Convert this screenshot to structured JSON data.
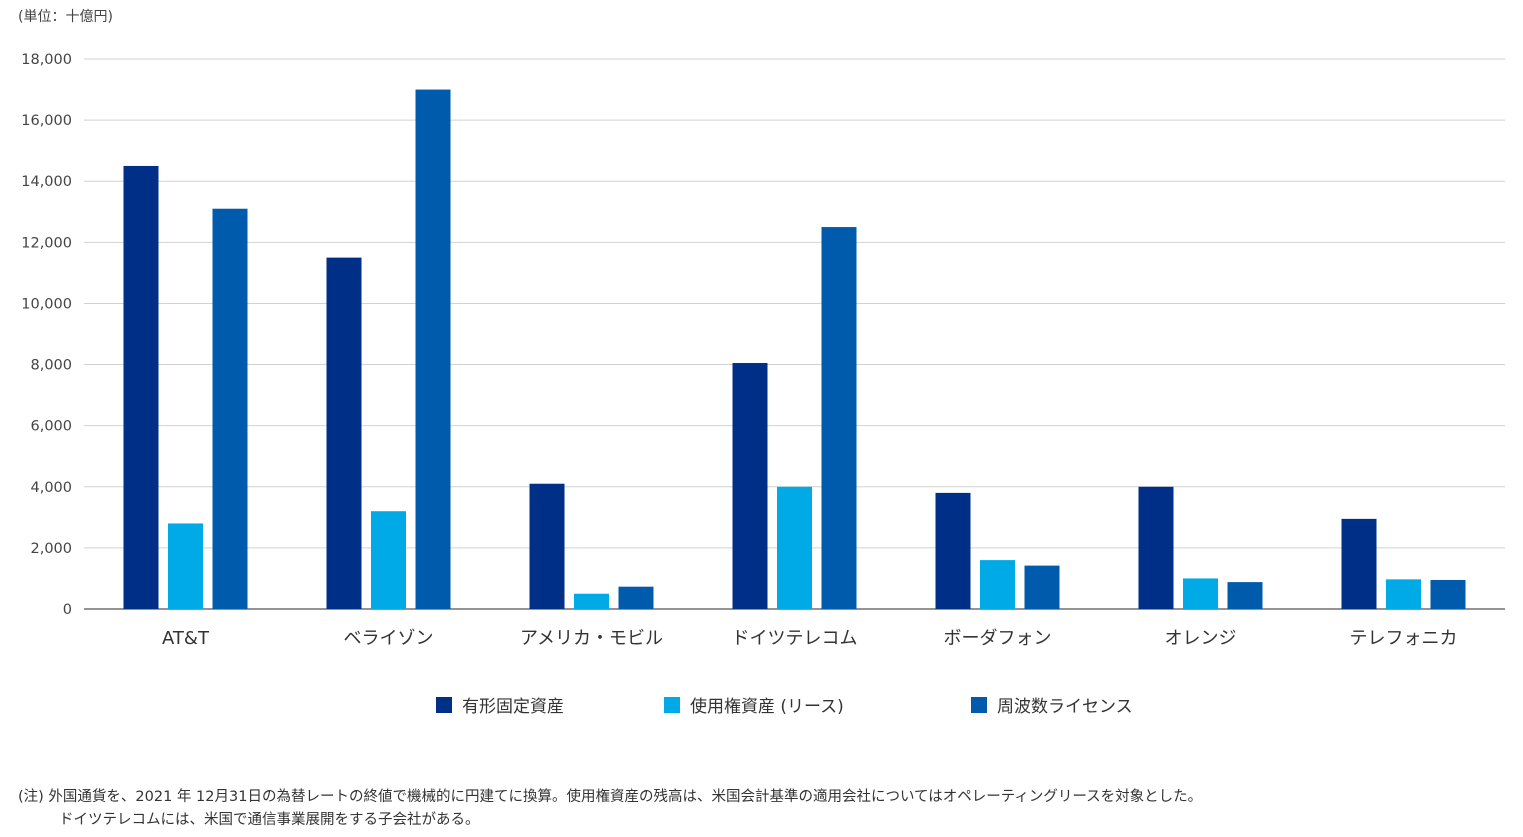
{
  "chart_data": {
    "type": "bar",
    "unit_label": "(単位：十億円)",
    "categories": [
      "AT&T",
      "ベライゾン",
      "アメリカ・モビル",
      "ドイツテレコム",
      "ボーダフォン",
      "オレンジ",
      "テレフォニカ"
    ],
    "series": [
      {
        "name": "有形固定資産",
        "color": "#002f87",
        "values": [
          14500,
          11500,
          4100,
          8050,
          3800,
          4000,
          2950
        ]
      },
      {
        "name": "使用権資産 (リース)",
        "color": "#00aae6",
        "values": [
          2800,
          3200,
          500,
          4000,
          1600,
          1000,
          970
        ]
      },
      {
        "name": "周波数ライセンス",
        "color": "#005bac",
        "values": [
          13100,
          17000,
          730,
          12500,
          1420,
          880,
          950
        ]
      }
    ],
    "ylim": [
      0,
      18000
    ],
    "yticks": [
      0,
      2000,
      4000,
      6000,
      8000,
      10000,
      12000,
      14000,
      16000,
      18000
    ],
    "ytick_labels": [
      "0",
      "2,000",
      "4,000",
      "6,000",
      "8,000",
      "10,000",
      "12,000",
      "14,000",
      "16,000",
      "18,000"
    ],
    "grid": true,
    "legend_position": "bottom-center"
  },
  "notes": {
    "line1": "(注) 外国通貨を、2021 年 12月31日の為替レートの終値で機械的に円建てに換算。使用権資産の残高は、米国会計基準の適用会社についてはオペレーティングリースを対象とした。",
    "line2": "ドイツテレコムには、米国で通信事業展開をする子会社がある。"
  }
}
